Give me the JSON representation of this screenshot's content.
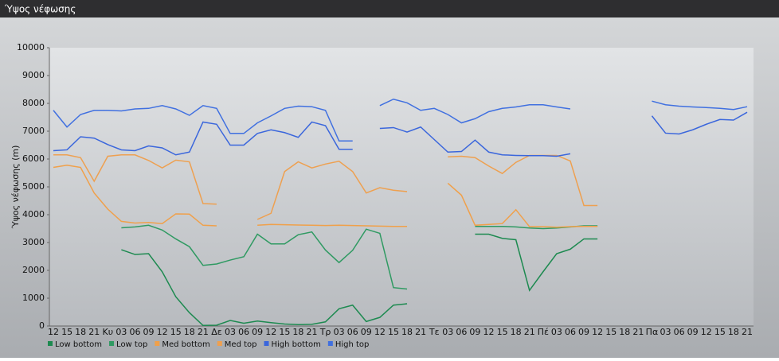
{
  "window_title": "Ύψος νέφωσης",
  "chart_data": {
    "type": "line",
    "y_label": "Ύψος νέφωσης (m)",
    "categories": [
      "12",
      "15",
      "18",
      "21",
      "Κυ",
      "03",
      "06",
      "09",
      "12",
      "15",
      "18",
      "21",
      "Δε",
      "03",
      "06",
      "09",
      "12",
      "15",
      "18",
      "21",
      "Τρ",
      "03",
      "06",
      "09",
      "12",
      "15",
      "18",
      "21",
      "Τε",
      "03",
      "06",
      "09",
      "12",
      "15",
      "18",
      "21",
      "Πέ",
      "03",
      "06",
      "09",
      "12",
      "15",
      "18",
      "21",
      "Πα",
      "03",
      "06",
      "09",
      "12",
      "15",
      "18",
      "21"
    ],
    "ylim": [
      0,
      10000
    ],
    "yticks": [
      0,
      1000,
      2000,
      3000,
      4000,
      5000,
      6000,
      7000,
      8000,
      9000,
      10000
    ],
    "grid": false,
    "legend": "bottom",
    "series": [
      {
        "name": "Low bottom",
        "color": "#1d8a50",
        "values": [
          null,
          null,
          null,
          null,
          null,
          2740,
          2570,
          2600,
          1950,
          1050,
          480,
          20,
          30,
          200,
          100,
          180,
          120,
          70,
          50,
          60,
          150,
          620,
          750,
          160,
          310,
          750,
          800,
          null,
          null,
          null,
          null,
          3300,
          3300,
          3150,
          3100,
          1280,
          1950,
          2600,
          2760,
          3130,
          3130,
          null,
          null,
          null,
          null,
          null,
          null,
          null,
          null,
          null,
          null,
          null
        ]
      },
      {
        "name": "Low top",
        "color": "#2f9a62",
        "values": [
          null,
          null,
          null,
          null,
          null,
          3530,
          3560,
          3620,
          3450,
          3130,
          2850,
          2180,
          2230,
          2370,
          2490,
          3300,
          2950,
          2950,
          3280,
          3380,
          2730,
          2280,
          2720,
          3480,
          3330,
          1380,
          1330,
          null,
          null,
          null,
          null,
          3580,
          3580,
          3580,
          3560,
          3520,
          3500,
          3520,
          3560,
          3600,
          3600,
          null,
          null,
          null,
          null,
          null,
          null,
          null,
          null,
          null,
          null,
          null
        ]
      },
      {
        "name": "Med bottom",
        "color": "#f0a04a",
        "values": [
          5700,
          5780,
          5700,
          4780,
          4200,
          3760,
          3700,
          3720,
          3680,
          4030,
          4020,
          3620,
          3600,
          null,
          null,
          3620,
          3650,
          3640,
          3630,
          3620,
          3610,
          3620,
          3610,
          3600,
          3590,
          3580,
          3580,
          null,
          null,
          5130,
          4700,
          3620,
          3650,
          3680,
          4180,
          3570,
          3570,
          3550,
          3570,
          3580,
          3580,
          null,
          null,
          null,
          null,
          null,
          null,
          null,
          null,
          null,
          null,
          null
        ]
      },
      {
        "name": "Med top",
        "color": "#eea050",
        "values": [
          6150,
          6150,
          6050,
          5200,
          6100,
          6150,
          6150,
          5950,
          5680,
          5960,
          5900,
          4400,
          4380,
          null,
          null,
          3830,
          4050,
          5550,
          5900,
          5680,
          5820,
          5920,
          5550,
          4780,
          4970,
          4880,
          4830,
          null,
          null,
          6080,
          6100,
          6050,
          5750,
          5480,
          5880,
          6130,
          6130,
          6130,
          5930,
          4330,
          4330,
          null,
          null,
          null,
          null,
          null,
          null,
          null,
          null,
          null,
          null,
          null
        ]
      },
      {
        "name": "High bottom",
        "color": "#3a66dc",
        "values": [
          6300,
          6330,
          6800,
          6750,
          6520,
          6330,
          6300,
          6470,
          6400,
          6150,
          6250,
          7330,
          7250,
          6500,
          6500,
          6920,
          7050,
          6950,
          6780,
          7330,
          7200,
          6350,
          6350,
          null,
          7100,
          7130,
          6970,
          7150,
          6700,
          6250,
          6270,
          6680,
          6250,
          6150,
          6130,
          6120,
          6120,
          6100,
          6190,
          null,
          null,
          null,
          null,
          null,
          7550,
          6930,
          6900,
          7050,
          7250,
          7420,
          7400,
          7680
        ]
      },
      {
        "name": "High top",
        "color": "#4070e0",
        "values": [
          7750,
          7150,
          7600,
          7750,
          7750,
          7730,
          7800,
          7820,
          7920,
          7800,
          7570,
          7920,
          7820,
          6920,
          6920,
          7300,
          7550,
          7820,
          7900,
          7880,
          7750,
          6650,
          6650,
          null,
          7920,
          8150,
          8020,
          7750,
          7820,
          7600,
          7300,
          7450,
          7700,
          7820,
          7870,
          7950,
          7950,
          7870,
          7800,
          null,
          null,
          null,
          null,
          null,
          8080,
          7950,
          7900,
          7870,
          7850,
          7820,
          7780,
          7880
        ]
      }
    ]
  }
}
